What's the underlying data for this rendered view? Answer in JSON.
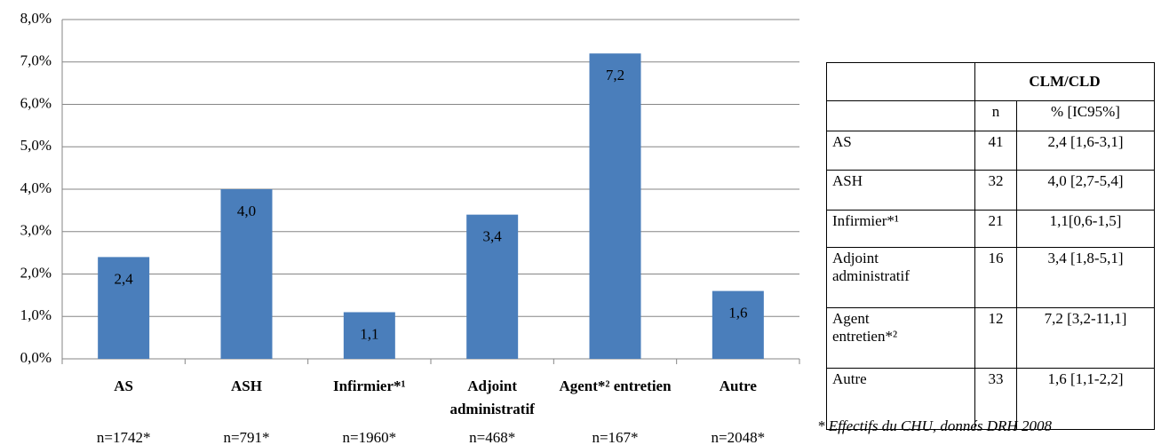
{
  "chart_data": {
    "type": "bar",
    "categories": [
      "AS",
      "ASH",
      "Infirmier*¹",
      "Adjoint administratif",
      "Agent*² entretien",
      "Autre"
    ],
    "values": [
      2.4,
      4.0,
      1.1,
      3.4,
      7.2,
      1.6
    ],
    "value_labels": [
      "2,4",
      "4,0",
      "1,1",
      "3,4",
      "7,2",
      "1,6"
    ],
    "n_labels": [
      "n=1742*",
      "n=791*",
      "n=1960*",
      "n=468*",
      "n=167*",
      "n=2048*"
    ],
    "color": "#4a7ebb",
    "ylim": [
      0,
      8
    ],
    "yticks": [
      {
        "value": 0,
        "label": "0,0%"
      },
      {
        "value": 1,
        "label": "1,0%"
      },
      {
        "value": 2,
        "label": "2,0%"
      },
      {
        "value": 3,
        "label": "3,0%"
      },
      {
        "value": 4,
        "label": "4,0%"
      },
      {
        "value": 5,
        "label": "5,0%"
      },
      {
        "value": 6,
        "label": "6,0%"
      },
      {
        "value": 7,
        "label": "7,0%"
      },
      {
        "value": 8,
        "label": "8,0%"
      }
    ],
    "grid": true
  },
  "table": {
    "group_header": "CLM/CLD",
    "columns": [
      "n",
      "% [IC95%]"
    ],
    "rows": [
      [
        "AS",
        "41",
        "2,4 [1,6-3,1]"
      ],
      [
        "ASH",
        "32",
        "4,0 [2,7-5,4]"
      ],
      [
        "Infirmier*¹",
        "21",
        "1,1[0,6-1,5]"
      ],
      [
        "Adjoint administratif",
        "16",
        "3,4 [1,8-5,1]"
      ],
      [
        "Agent entretien*²",
        "12",
        "7,2 [3,2-11,1]"
      ],
      [
        "Autre",
        "33",
        "1,6 [1,1-2,2]"
      ]
    ]
  },
  "footnote": "* Effectifs du CHU, donnés DRH 2008"
}
